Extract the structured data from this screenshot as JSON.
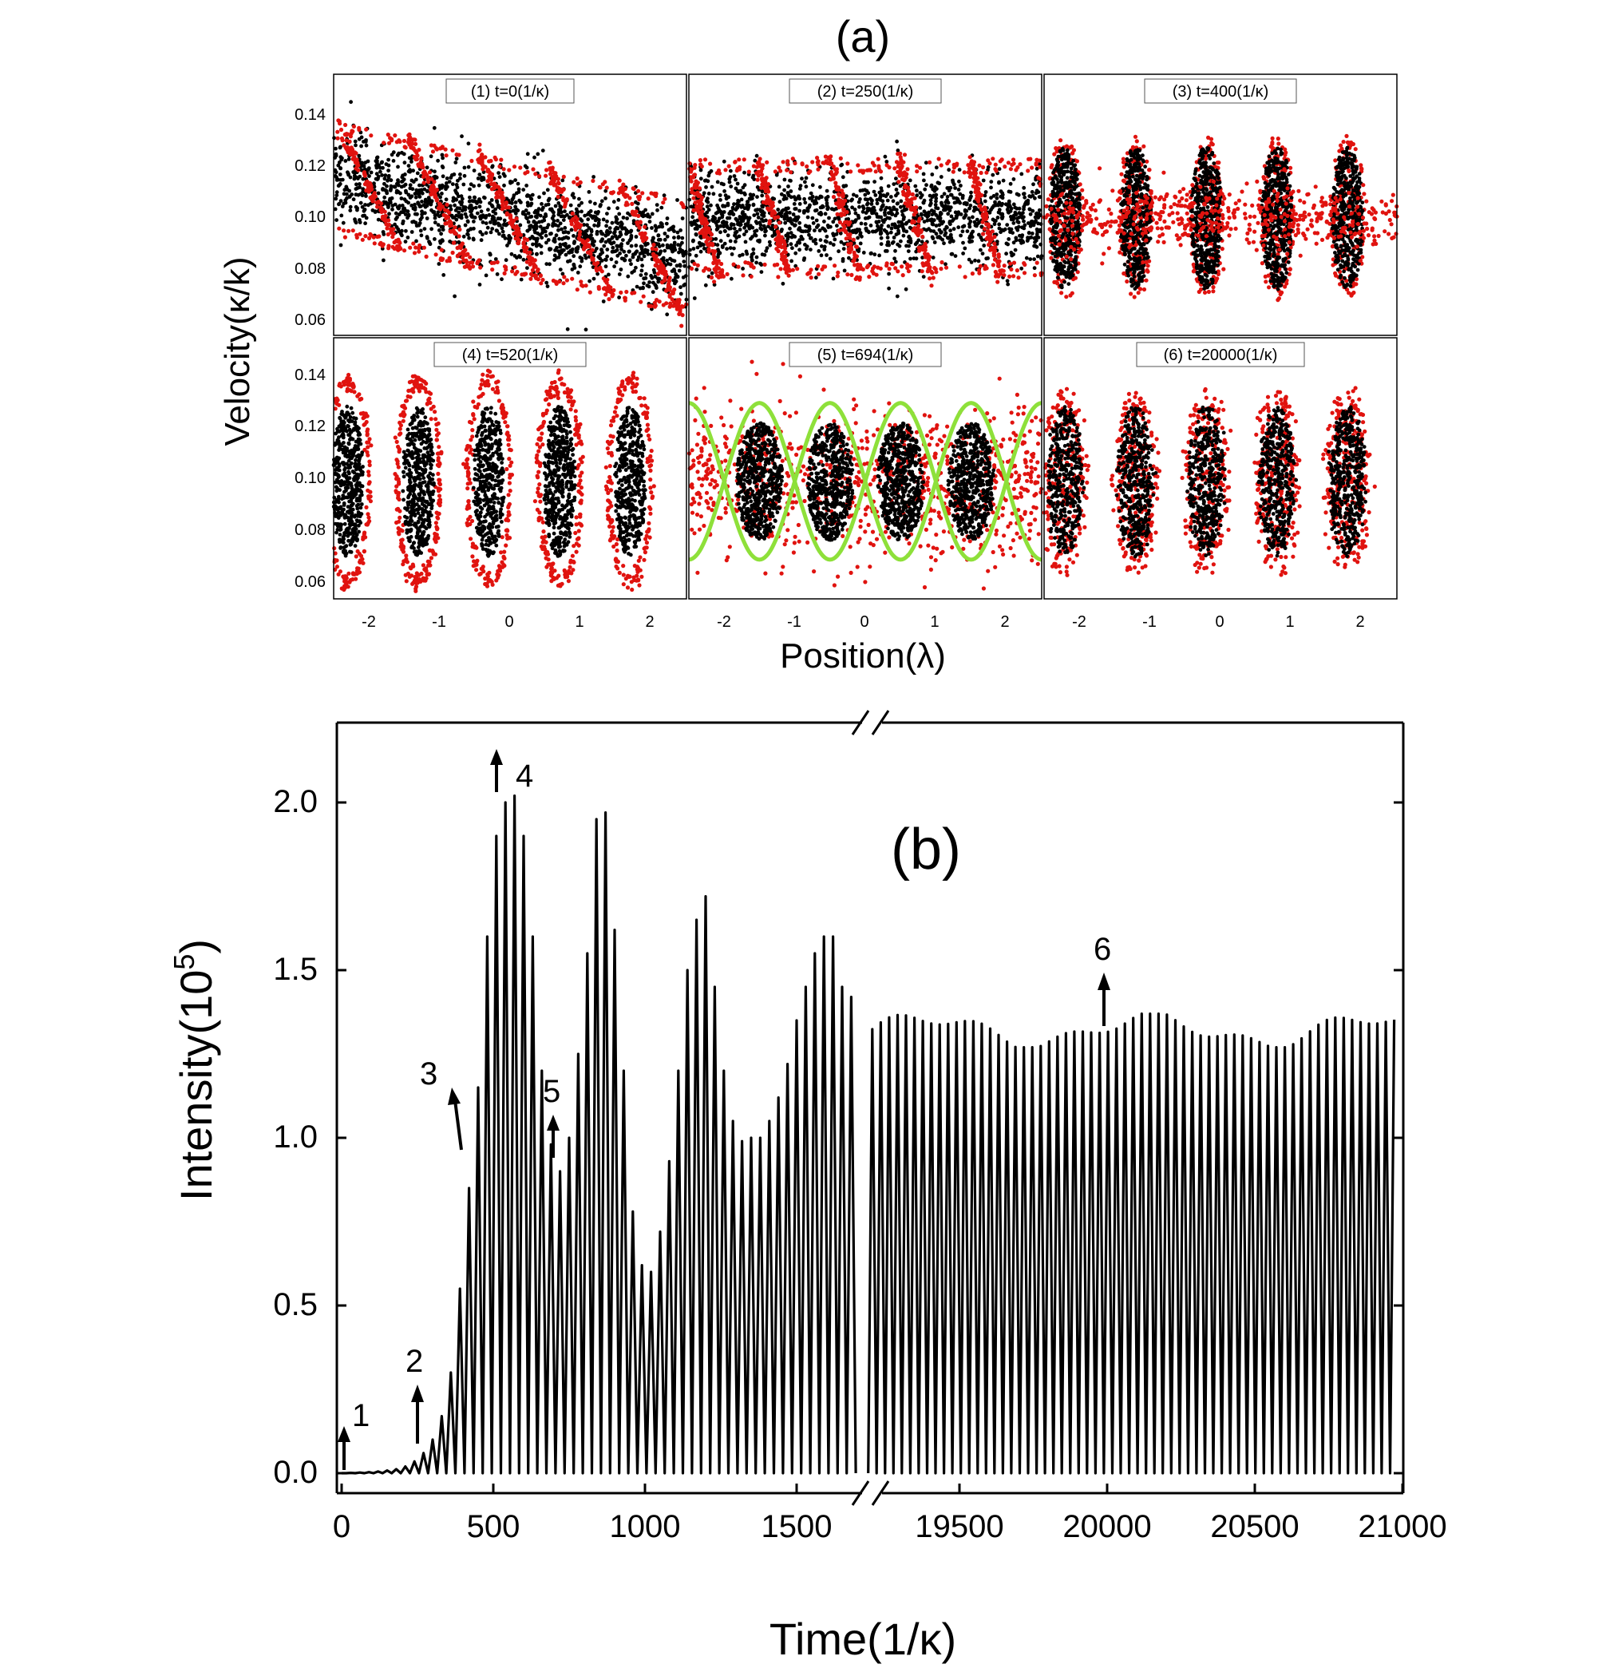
{
  "figure_a": {
    "label": "(a)",
    "ylabel": "Velocity(κ/k)",
    "xlabel": "Position(λ)",
    "colors": {
      "black_particles": "#000000",
      "red_particles": "#e0130f",
      "separatrix": "#8ee03a"
    },
    "y_ticks": [
      "0.06",
      "0.08",
      "0.10",
      "0.12",
      "0.14"
    ],
    "x_ticks": [
      "-2",
      "-1",
      "0",
      "1",
      "2"
    ]
  },
  "figure_b": {
    "label": "(b)",
    "ylabel_main": "Intensity(10",
    "ylabel_exp": "5",
    "ylabel_close": ")",
    "xlabel": "Time(1/κ)",
    "y_ticks": [
      "0.0",
      "0.5",
      "1.0",
      "1.5",
      "2.0"
    ],
    "x_ticks_left": [
      "0",
      "500",
      "1000",
      "1500"
    ],
    "x_ticks_right": [
      "19500",
      "20000",
      "20500",
      "21000"
    ],
    "markers": [
      "1",
      "2",
      "3",
      "4",
      "5",
      "6"
    ]
  },
  "chart_data": [
    {
      "type": "scatter",
      "title": "(1) t=0(1/κ)",
      "xlabel": "Position(λ)",
      "ylabel": "Velocity(κ/k)",
      "xlim": [
        -2.5,
        2.5
      ],
      "ylim": [
        0.055,
        0.155
      ],
      "description_data": {
        "pattern": "tilted bands",
        "center_velocity": 0.1,
        "spread": 0.02
      }
    },
    {
      "type": "scatter",
      "title": "(2) t=250(1/κ)",
      "xlabel": "Position(λ)",
      "ylabel": "Velocity(κ/k)",
      "xlim": [
        -2.5,
        2.5
      ],
      "ylim": [
        0.055,
        0.155
      ],
      "description_data": {
        "pattern": "steep bands",
        "center_velocity": 0.1,
        "spread": 0.02
      }
    },
    {
      "type": "scatter",
      "title": "(3) t=400(1/κ)",
      "xlabel": "Position(λ)",
      "ylabel": "Velocity(κ/k)",
      "xlim": [
        -2.5,
        2.5
      ],
      "ylim": [
        0.055,
        0.155
      ],
      "description_data": {
        "pattern": "bunches",
        "bunch_centers": [
          -2.2,
          -1.2,
          -0.2,
          0.8,
          1.8
        ]
      }
    },
    {
      "type": "scatter",
      "title": "(4) t=520(1/κ)",
      "xlabel": "Position(λ)",
      "ylabel": "Velocity(κ/k)",
      "xlim": [
        -2.5,
        2.5
      ],
      "ylim": [
        0.055,
        0.155
      ],
      "description_data": {
        "pattern": "bunches",
        "bunch_centers": [
          -2.3,
          -1.3,
          -0.3,
          0.7,
          1.7
        ]
      }
    },
    {
      "type": "scatter",
      "title": "(5) t=694(1/κ)",
      "xlabel": "Position(λ)",
      "ylabel": "Velocity(κ/k)",
      "xlim": [
        -2.5,
        2.5
      ],
      "ylim": [
        0.055,
        0.155
      ],
      "description_data": {
        "pattern": "bunches with separatrix",
        "bunch_centers": [
          -1.5,
          -0.5,
          0.5,
          1.5
        ]
      }
    },
    {
      "type": "scatter",
      "title": "(6) t=20000(1/κ)",
      "xlabel": "Position(λ)",
      "ylabel": "Velocity(κ/k)",
      "xlim": [
        -2.5,
        2.5
      ],
      "ylim": [
        0.055,
        0.155
      ],
      "description_data": {
        "pattern": "bunches",
        "bunch_centers": [
          -2.2,
          -1.2,
          -0.2,
          0.8,
          1.8
        ]
      }
    },
    {
      "type": "line",
      "title": "(b)",
      "xlabel": "Time(1/κ)",
      "ylabel": "Intensity(10^5)",
      "ylim": [
        -0.1,
        2.2
      ],
      "segments": [
        {
          "xlim": [
            0,
            1700
          ],
          "peaks": {
            "x": [
              30,
              60,
              90,
              120,
              150,
              180,
              210,
              240,
              270,
              300,
              330,
              360,
              390,
              420,
              450,
              480,
              510,
              540,
              570,
              600,
              630,
              660,
              690,
              720,
              750,
              780,
              810,
              840,
              870,
              900,
              930,
              960,
              990,
              1020,
              1050,
              1080,
              1110,
              1140,
              1170,
              1200,
              1230,
              1260,
              1290,
              1320,
              1350,
              1380,
              1410,
              1440,
              1470,
              1500,
              1530,
              1560,
              1590,
              1620,
              1650,
              1680
            ],
            "y": [
              0.001,
              0.002,
              0.003,
              0.005,
              0.008,
              0.012,
              0.02,
              0.035,
              0.06,
              0.1,
              0.17,
              0.3,
              0.55,
              0.85,
              1.15,
              1.6,
              1.9,
              2.0,
              2.02,
              1.9,
              1.6,
              1.2,
              0.98,
              0.9,
              1.0,
              1.25,
              1.55,
              1.95,
              1.97,
              1.62,
              1.2,
              0.78,
              0.62,
              0.6,
              0.72,
              0.93,
              1.2,
              1.5,
              1.65,
              1.72,
              1.45,
              1.2,
              1.05,
              0.99,
              1.0,
              1.0,
              1.05,
              1.12,
              1.22,
              1.35,
              1.45,
              1.55,
              1.6,
              1.6,
              1.45,
              1.42
            ]
          }
        },
        {
          "xlim": [
            19200,
            21000
          ],
          "mean_peak": 1.32,
          "peak_range": [
            1.27,
            1.37
          ]
        }
      ],
      "annotations": [
        {
          "label": "1",
          "x": 0,
          "y": 0.15
        },
        {
          "label": "2",
          "x": 250,
          "y": 0.27
        },
        {
          "label": "3",
          "x": 400,
          "y": 1.17
        },
        {
          "label": "4",
          "x": 520,
          "y": 2.2
        },
        {
          "label": "5",
          "x": 694,
          "y": 1.1
        },
        {
          "label": "6",
          "x": 20000,
          "y": 1.5
        }
      ]
    }
  ]
}
